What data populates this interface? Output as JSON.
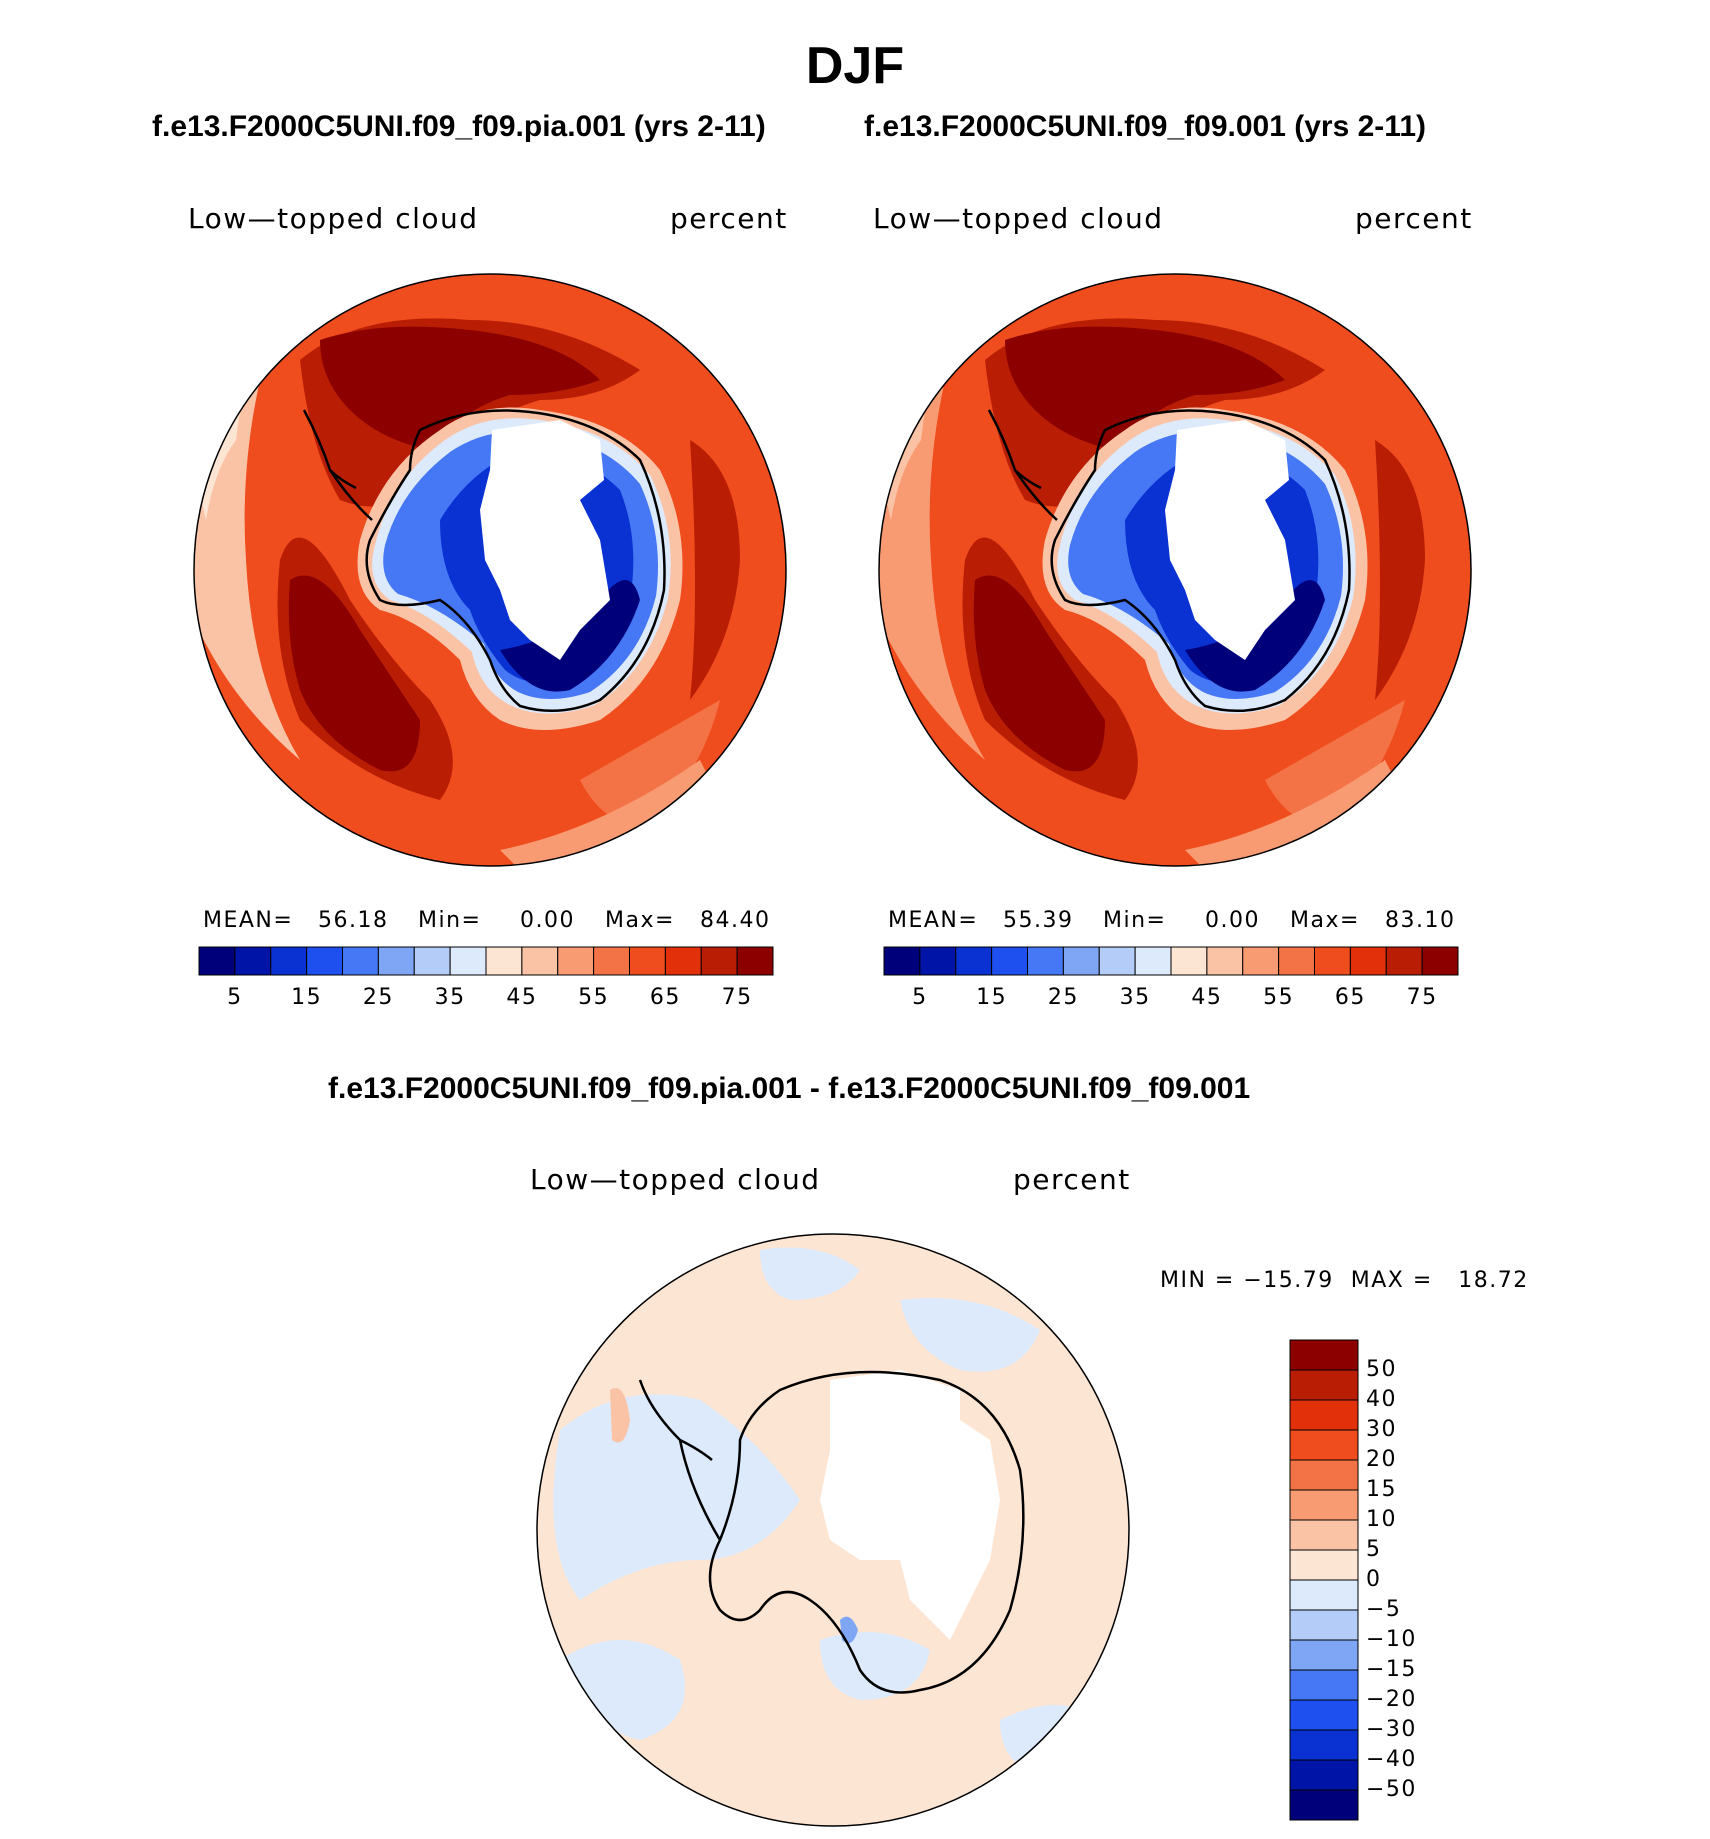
{
  "title": "DJF",
  "panels": {
    "left": {
      "case": "f.e13.F2000C5UNI.f09_f09.pia.001 (yrs 2-11)",
      "variable": "Low—topped cloud",
      "units": "percent",
      "mean_label": "MEAN=",
      "mean": "56.18",
      "min_label": "Min=",
      "min": "0.00",
      "max_label": "Max=",
      "max": "84.40"
    },
    "right": {
      "case": "f.e13.F2000C5UNI.f09_f09.001 (yrs 2-11)",
      "variable": "Low—topped cloud",
      "units": "percent",
      "mean_label": "MEAN=",
      "mean": "55.39",
      "min_label": "Min=",
      "min": "0.00",
      "max_label": "Max=",
      "max": "83.10"
    },
    "diff": {
      "case": "f.e13.F2000C5UNI.f09_f09.pia.001 - f.e13.F2000C5UNI.f09_f09.001",
      "variable": "Low—topped cloud",
      "units": "percent",
      "minmax": "MIN = −15.79  MAX =   18.72"
    }
  },
  "colorbar_abs": {
    "colors": [
      "#00007a",
      "#0014a8",
      "#0a32d2",
      "#1e50f0",
      "#4678f5",
      "#7ea6f5",
      "#b4cdf8",
      "#dceafc",
      "#fde5d4",
      "#fbc3a6",
      "#f89b73",
      "#f47346",
      "#f04d1e",
      "#e1300a",
      "#b91e05",
      "#8c0000"
    ],
    "labels": [
      "5",
      "15",
      "25",
      "35",
      "45",
      "55",
      "65",
      "75"
    ]
  },
  "colorbar_diff": {
    "colors": [
      "#8c0000",
      "#b91e05",
      "#e1300a",
      "#f04d1e",
      "#f47346",
      "#f89b73",
      "#fbc3a6",
      "#fde5d4",
      "#dceafc",
      "#b4cdf8",
      "#7ea6f5",
      "#4678f5",
      "#1e50f0",
      "#0a32d2",
      "#0014a8",
      "#00007a"
    ],
    "labels": [
      "50",
      "40",
      "30",
      "20",
      "15",
      "10",
      "5",
      "0",
      "−5",
      "−10",
      "−15",
      "−20",
      "−30",
      "−40",
      "−50"
    ]
  },
  "chart_data": [
    {
      "type": "heatmap",
      "title": "f.e13.F2000C5UNI.f09_f09.pia.001 (yrs 2-11)",
      "variable": "Low—topped cloud",
      "units": "percent",
      "mean": 56.18,
      "min": 0.0,
      "max": 84.4,
      "levels": [
        5,
        10,
        15,
        20,
        25,
        30,
        35,
        40,
        45,
        50,
        55,
        60,
        65,
        70,
        75
      ]
    },
    {
      "type": "heatmap",
      "title": "f.e13.F2000C5UNI.f09_f09.001 (yrs 2-11)",
      "variable": "Low—topped cloud",
      "units": "percent",
      "mean": 55.39,
      "min": 0.0,
      "max": 83.1,
      "levels": [
        5,
        10,
        15,
        20,
        25,
        30,
        35,
        40,
        45,
        50,
        55,
        60,
        65,
        70,
        75
      ]
    },
    {
      "type": "heatmap",
      "title": "f.e13.F2000C5UNI.f09_f09.pia.001 - f.e13.F2000C5UNI.f09_f09.001",
      "variable": "Low—topped cloud",
      "units": "percent",
      "min": -15.79,
      "max": 18.72,
      "levels": [
        -50,
        -40,
        -30,
        -20,
        -15,
        -10,
        -5,
        0,
        5,
        10,
        15,
        20,
        30,
        40,
        50
      ]
    }
  ]
}
